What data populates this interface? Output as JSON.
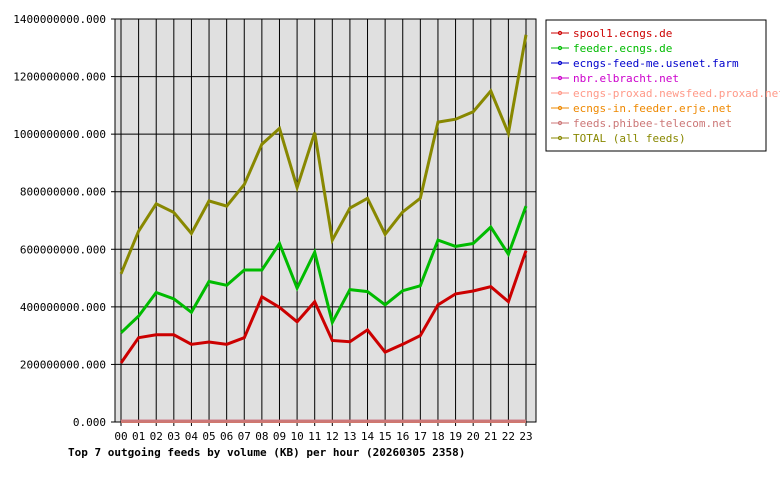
{
  "chart_data": {
    "type": "line",
    "title": "Top 7 outgoing feeds by volume (KB) per hour (20260305 2358)",
    "xlabel": "",
    "ylabel": "",
    "categories": [
      "00",
      "01",
      "02",
      "03",
      "04",
      "05",
      "06",
      "07",
      "08",
      "09",
      "10",
      "11",
      "12",
      "13",
      "14",
      "15",
      "16",
      "17",
      "18",
      "19",
      "20",
      "21",
      "22",
      "23"
    ],
    "ylim": [
      0,
      1400000000
    ],
    "yticks": [
      0,
      200000000,
      400000000,
      600000000,
      800000000,
      1000000000,
      1200000000,
      1400000000
    ],
    "ytick_labels": [
      "0.000",
      "200000000.000",
      "400000000.000",
      "600000000.000",
      "800000000.000",
      "1000000000.000",
      "1200000000.000",
      "1400000000.000"
    ],
    "grid": true,
    "legend_position": "right",
    "series": [
      {
        "name": "spool1.ecngs.de",
        "color": "#cc0000",
        "values": [
          205000000,
          293000000,
          303000000,
          303000000,
          270000000,
          278000000,
          270000000,
          293000000,
          435000000,
          398000000,
          348000000,
          418000000,
          283000000,
          279000000,
          320000000,
          243000000,
          270000000,
          300000000,
          407000000,
          445000000,
          455000000,
          470000000,
          418000000,
          595000000
        ]
      },
      {
        "name": "feeder.ecngs.de",
        "color": "#00bb00",
        "values": [
          310000000,
          368000000,
          450000000,
          428000000,
          381000000,
          488000000,
          475000000,
          528000000,
          528000000,
          620000000,
          465000000,
          590000000,
          346000000,
          460000000,
          453000000,
          407000000,
          456000000,
          473000000,
          632000000,
          610000000,
          620000000,
          677000000,
          583000000,
          750000000
        ]
      },
      {
        "name": "ecngs-feed-me.usenet.farm",
        "color": "#0000cc",
        "values": [
          2000000,
          2000000,
          2000000,
          2000000,
          2000000,
          2000000,
          2000000,
          2000000,
          2000000,
          2000000,
          2000000,
          2000000,
          2000000,
          2000000,
          2000000,
          2000000,
          2000000,
          2000000,
          2000000,
          2000000,
          2000000,
          2000000,
          2000000,
          2000000
        ]
      },
      {
        "name": "nbr.elbracht.net",
        "color": "#cc00cc",
        "values": [
          2000000,
          2000000,
          2000000,
          2000000,
          2000000,
          2000000,
          2000000,
          2000000,
          2000000,
          2000000,
          2000000,
          2000000,
          2000000,
          2000000,
          2000000,
          2000000,
          2000000,
          2000000,
          2000000,
          2000000,
          2000000,
          2000000,
          2000000,
          2000000
        ]
      },
      {
        "name": "ecngs-proxad.newsfeed.proxad.net",
        "color": "#ff9988",
        "values": [
          2000000,
          2000000,
          2000000,
          2000000,
          2000000,
          2000000,
          2000000,
          2000000,
          2000000,
          2000000,
          2000000,
          2000000,
          2000000,
          2000000,
          2000000,
          2000000,
          2000000,
          2000000,
          2000000,
          2000000,
          2000000,
          2000000,
          2000000,
          2000000
        ]
      },
      {
        "name": "ecngs-in.feeder.erje.net",
        "color": "#ee8800",
        "values": [
          2000000,
          2000000,
          2000000,
          2000000,
          2000000,
          2000000,
          2000000,
          2000000,
          2000000,
          2000000,
          2000000,
          2000000,
          2000000,
          2000000,
          2000000,
          2000000,
          2000000,
          2000000,
          2000000,
          2000000,
          2000000,
          2000000,
          2000000,
          2000000
        ]
      },
      {
        "name": "feeds.phibee-telecom.net",
        "color": "#cc7777",
        "values": [
          2000000,
          2000000,
          2000000,
          2000000,
          2000000,
          2000000,
          2000000,
          2000000,
          2000000,
          2000000,
          2000000,
          2000000,
          2000000,
          2000000,
          2000000,
          2000000,
          2000000,
          2000000,
          2000000,
          2000000,
          2000000,
          2000000,
          2000000,
          2000000
        ]
      },
      {
        "name": "TOTAL (all feeds)",
        "color": "#888800",
        "values": [
          515000000,
          663000000,
          758000000,
          728000000,
          655000000,
          768000000,
          750000000,
          825000000,
          965000000,
          1020000000,
          815000000,
          1005000000,
          632000000,
          743000000,
          777000000,
          652000000,
          730000000,
          777000000,
          1042000000,
          1052000000,
          1078000000,
          1150000000,
          1003000000,
          1345000000
        ]
      }
    ]
  }
}
